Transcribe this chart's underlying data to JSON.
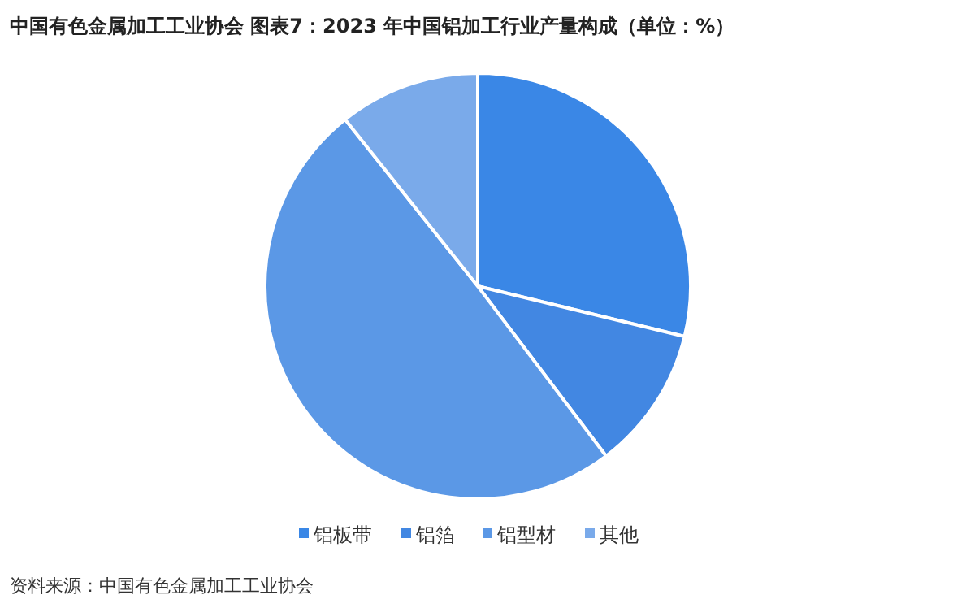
{
  "chart_data": {
    "type": "pie",
    "title": "中国有色金属加工工业协会 图表7：2023 年中国铝加工行业产量构成（单位：%）",
    "categories": [
      "铝板带",
      "铝箔",
      "铝型材",
      "其他"
    ],
    "values": [
      28.8,
      10.9,
      49.6,
      10.7
    ],
    "colors": [
      "#3a87e6",
      "#4287e2",
      "#5b98e6",
      "#7aaaea"
    ],
    "legend": "bottom",
    "annotations": [
      "资料来源：中国有色金属加工工业协会"
    ]
  }
}
